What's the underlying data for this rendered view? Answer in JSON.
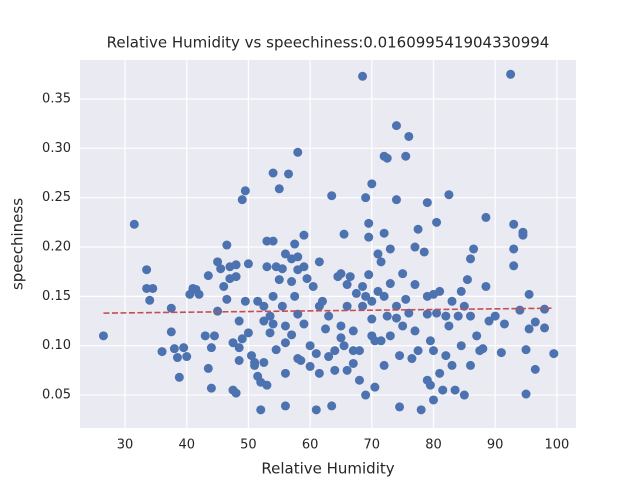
{
  "chart_data": {
    "type": "scatter",
    "title": "Relative Humidity vs speechiness:0.016099541904330994",
    "x_label": "Relative Humidity",
    "y_label": "speechiness",
    "xlim": [
      22.7,
      103.1
    ],
    "ylim": [
      0.0166,
      0.3895
    ],
    "xticks": [
      30,
      40,
      50,
      60,
      70,
      80,
      90,
      100
    ],
    "yticks": [
      0.05,
      {
        "value": 0.1,
        "label": "0.10"
      },
      0.15,
      {
        "value": 0.2,
        "label": "0.20"
      },
      0.25,
      {
        "value": 0.3,
        "label": "0.30"
      },
      0.35
    ],
    "grid": true,
    "points": {
      "color": "#4c72b0",
      "x": [
        26.5,
        31.5,
        33.5,
        33.5,
        34,
        34.5,
        36,
        37.5,
        37.5,
        38,
        38.5,
        38.8,
        39.5,
        40,
        40.5,
        41,
        41.5,
        42,
        43,
        43.5,
        43.5,
        44,
        44,
        44.5,
        45,
        45,
        45.5,
        46,
        46.5,
        46.5,
        47,
        47,
        47.5,
        47.5,
        48,
        48,
        48,
        48.5,
        48.5,
        48.5,
        49,
        49,
        49.5,
        49.5,
        50,
        50,
        50.5,
        51,
        51,
        51.5,
        51.5,
        52,
        52,
        52.5,
        52.5,
        52.5,
        53,
        53,
        53,
        53.5,
        53.5,
        54,
        54,
        54,
        54,
        54.5,
        54.5,
        55,
        55,
        55.5,
        55.5,
        56,
        56,
        56,
        56,
        56,
        56.5,
        57,
        57,
        57,
        57.5,
        57.5,
        58,
        58,
        58,
        58,
        58,
        58.5,
        59,
        59,
        59,
        59.5,
        60,
        60,
        60.5,
        61,
        61,
        61.5,
        61.5,
        61.5,
        62,
        62.5,
        63,
        63,
        63.5,
        63.5,
        64,
        64,
        64.5,
        65,
        65,
        65,
        65.5,
        65.5,
        66,
        66,
        66,
        66.5,
        67,
        67,
        67,
        67.5,
        68,
        68,
        68.5,
        68.5,
        68.5,
        69,
        69,
        69,
        69.5,
        69.5,
        69.5,
        70,
        70,
        70,
        70,
        70.5,
        70.5,
        71,
        71,
        71.5,
        71.5,
        72,
        72,
        72,
        72,
        72.5,
        72.5,
        73,
        73,
        73,
        74,
        74,
        74,
        74,
        74.5,
        74.5,
        75,
        75,
        75.5,
        75.5,
        76,
        76,
        76.5,
        77,
        77,
        77,
        77.5,
        77.5,
        78,
        78.5,
        79,
        79,
        79,
        79,
        79.5,
        79.5,
        80,
        80,
        80,
        80.5,
        80.5,
        81,
        81,
        81.5,
        82,
        82,
        82.5,
        82.5,
        83,
        83,
        83.5,
        84,
        84.5,
        84.5,
        85,
        85,
        85.5,
        86,
        86,
        86,
        86.5,
        87,
        87.5,
        88,
        88.5,
        88.5,
        89,
        90,
        91,
        91.5,
        92.5,
        93,
        93,
        93,
        94,
        94.5,
        94.5,
        95,
        95,
        95.5,
        95.5,
        96.5,
        96.5,
        98,
        98,
        99.5
      ],
      "y": [
        0.11,
        0.223,
        0.177,
        0.158,
        0.146,
        0.158,
        0.094,
        0.138,
        0.114,
        0.097,
        0.088,
        0.068,
        0.098,
        0.089,
        0.152,
        0.158,
        0.157,
        0.152,
        0.11,
        0.171,
        0.077,
        0.057,
        0.098,
        0.11,
        0.185,
        0.135,
        0.178,
        0.16,
        0.147,
        0.202,
        0.18,
        0.168,
        0.103,
        0.055,
        0.182,
        0.17,
        0.052,
        0.125,
        0.098,
        0.085,
        0.107,
        0.248,
        0.257,
        0.145,
        0.183,
        0.113,
        0.09,
        0.083,
        0.08,
        0.145,
        0.069,
        0.063,
        0.035,
        0.14,
        0.125,
        0.083,
        0.206,
        0.18,
        0.06,
        0.113,
        0.13,
        0.275,
        0.206,
        0.15,
        0.122,
        0.18,
        0.096,
        0.259,
        0.167,
        0.14,
        0.178,
        0.193,
        0.12,
        0.103,
        0.072,
        0.039,
        0.274,
        0.188,
        0.165,
        0.111,
        0.203,
        0.15,
        0.296,
        0.19,
        0.177,
        0.132,
        0.087,
        0.085,
        0.212,
        0.18,
        0.122,
        0.168,
        0.1,
        0.079,
        0.16,
        0.035,
        0.092,
        0.185,
        0.14,
        0.072,
        0.145,
        0.117,
        0.13,
        0.089,
        0.252,
        0.039,
        0.075,
        0.095,
        0.17,
        0.173,
        0.12,
        0.108,
        0.213,
        0.1,
        0.162,
        0.14,
        0.075,
        0.17,
        0.095,
        0.082,
        0.115,
        0.153,
        0.095,
        0.065,
        0.16,
        0.14,
        0.373,
        0.25,
        0.15,
        0.05,
        0.224,
        0.21,
        0.172,
        0.264,
        0.145,
        0.127,
        0.11,
        0.105,
        0.058,
        0.193,
        0.155,
        0.185,
        0.105,
        0.292,
        0.214,
        0.15,
        0.08,
        0.29,
        0.13,
        0.198,
        0.163,
        0.11,
        0.248,
        0.323,
        0.14,
        0.128,
        0.038,
        0.09,
        0.173,
        0.12,
        0.292,
        0.147,
        0.312,
        0.133,
        0.087,
        0.2,
        0.162,
        0.115,
        0.218,
        0.095,
        0.035,
        0.195,
        0.245,
        0.15,
        0.132,
        0.065,
        0.105,
        0.06,
        0.152,
        0.095,
        0.045,
        0.225,
        0.133,
        0.155,
        0.072,
        0.055,
        0.13,
        0.09,
        0.253,
        0.12,
        0.145,
        0.08,
        0.055,
        0.13,
        0.155,
        0.1,
        0.14,
        0.05,
        0.167,
        0.188,
        0.13,
        0.08,
        0.198,
        0.11,
        0.095,
        0.097,
        0.23,
        0.16,
        0.125,
        0.13,
        0.093,
        0.122,
        0.375,
        0.223,
        0.181,
        0.198,
        0.136,
        0.212,
        0.215,
        0.096,
        0.051,
        0.117,
        0.152,
        0.124,
        0.076,
        0.137,
        0.118,
        0.092
      ]
    },
    "trend": {
      "color": "#c44e52",
      "dashed": true,
      "x": [
        26.5,
        99.5
      ],
      "y": [
        0.133,
        0.138
      ]
    }
  }
}
